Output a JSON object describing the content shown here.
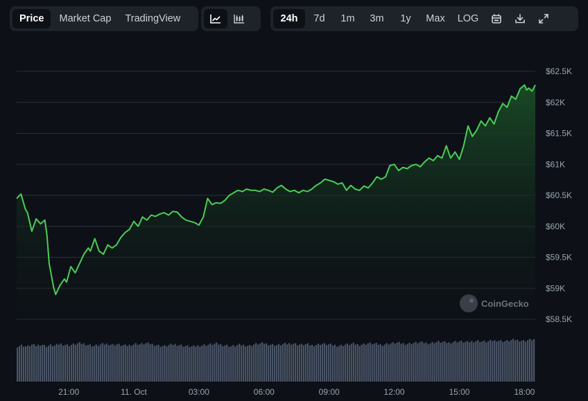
{
  "toolbar": {
    "view_tabs": [
      {
        "label": "Price",
        "active": true
      },
      {
        "label": "Market Cap",
        "active": false
      },
      {
        "label": "TradingView",
        "active": false
      }
    ],
    "chart_type_icons": [
      {
        "icon": "line-chart-icon",
        "active": true
      },
      {
        "icon": "candlestick-chart-icon",
        "active": false
      }
    ],
    "ranges": [
      {
        "label": "24h",
        "active": true
      },
      {
        "label": "7d",
        "active": false
      },
      {
        "label": "1m",
        "active": false
      },
      {
        "label": "3m",
        "active": false
      },
      {
        "label": "1y",
        "active": false
      },
      {
        "label": "Max",
        "active": false
      },
      {
        "label": "LOG",
        "active": false
      }
    ],
    "tool_icons": [
      "calendar-icon",
      "download-icon",
      "expand-icon"
    ]
  },
  "watermark": "CoinGecko",
  "colors": {
    "background": "#0d1117",
    "line": "#4ccd57",
    "area_top": "#1a4d26",
    "volume": "#4a5568",
    "grid": "#2a3038",
    "button_group": "#1e2329"
  },
  "chart_data": {
    "type": "area",
    "y_ticks": [
      {
        "value": 62500,
        "label": "$62.5K"
      },
      {
        "value": 62000,
        "label": "$62K"
      },
      {
        "value": 61500,
        "label": "$61.5K"
      },
      {
        "value": 61000,
        "label": "$61K"
      },
      {
        "value": 60500,
        "label": "$60.5K"
      },
      {
        "value": 60000,
        "label": "$60K"
      },
      {
        "value": 59500,
        "label": "$59.5K"
      },
      {
        "value": 59000,
        "label": "$59K"
      },
      {
        "value": 58500,
        "label": "$58.5K"
      }
    ],
    "ylim": [
      58500,
      62500
    ],
    "x_ticks": [
      {
        "hour": 21,
        "label": "21:00"
      },
      {
        "hour": 24,
        "label": "11. Oct"
      },
      {
        "hour": 27,
        "label": "03:00"
      },
      {
        "hour": 30,
        "label": "06:00"
      },
      {
        "hour": 33,
        "label": "09:00"
      },
      {
        "hour": 36,
        "label": "12:00"
      },
      {
        "hour": 39,
        "label": "15:00"
      },
      {
        "hour": 42,
        "label": "18:00"
      }
    ],
    "xlim_hours": [
      18.6,
      42.5
    ],
    "price": [
      [
        18.6,
        60450
      ],
      [
        18.8,
        60520
      ],
      [
        19.0,
        60280
      ],
      [
        19.1,
        60220
      ],
      [
        19.3,
        59920
      ],
      [
        19.5,
        60120
      ],
      [
        19.7,
        60040
      ],
      [
        19.9,
        60100
      ],
      [
        20.0,
        59850
      ],
      [
        20.1,
        59400
      ],
      [
        20.3,
        59020
      ],
      [
        20.4,
        58900
      ],
      [
        20.6,
        59050
      ],
      [
        20.8,
        59150
      ],
      [
        20.9,
        59100
      ],
      [
        21.1,
        59350
      ],
      [
        21.3,
        59250
      ],
      [
        21.5,
        59400
      ],
      [
        21.7,
        59550
      ],
      [
        21.9,
        59650
      ],
      [
        22.0,
        59600
      ],
      [
        22.2,
        59800
      ],
      [
        22.4,
        59600
      ],
      [
        22.6,
        59550
      ],
      [
        22.8,
        59700
      ],
      [
        23.0,
        59650
      ],
      [
        23.2,
        59700
      ],
      [
        23.4,
        59820
      ],
      [
        23.6,
        59900
      ],
      [
        23.8,
        59950
      ],
      [
        24.0,
        60080
      ],
      [
        24.2,
        60000
      ],
      [
        24.4,
        60150
      ],
      [
        24.6,
        60100
      ],
      [
        24.8,
        60180
      ],
      [
        25.0,
        60160
      ],
      [
        25.2,
        60200
      ],
      [
        25.4,
        60220
      ],
      [
        25.6,
        60180
      ],
      [
        25.8,
        60240
      ],
      [
        26.0,
        60230
      ],
      [
        26.2,
        60150
      ],
      [
        26.4,
        60100
      ],
      [
        26.6,
        60080
      ],
      [
        26.8,
        60060
      ],
      [
        27.0,
        60020
      ],
      [
        27.2,
        60150
      ],
      [
        27.4,
        60450
      ],
      [
        27.6,
        60350
      ],
      [
        27.8,
        60380
      ],
      [
        28.0,
        60370
      ],
      [
        28.2,
        60420
      ],
      [
        28.4,
        60500
      ],
      [
        28.6,
        60540
      ],
      [
        28.8,
        60580
      ],
      [
        29.0,
        60560
      ],
      [
        29.2,
        60600
      ],
      [
        29.4,
        60580
      ],
      [
        29.6,
        60580
      ],
      [
        29.8,
        60560
      ],
      [
        30.0,
        60600
      ],
      [
        30.2,
        60580
      ],
      [
        30.4,
        60550
      ],
      [
        30.6,
        60620
      ],
      [
        30.8,
        60660
      ],
      [
        31.0,
        60600
      ],
      [
        31.2,
        60560
      ],
      [
        31.4,
        60580
      ],
      [
        31.6,
        60540
      ],
      [
        31.8,
        60580
      ],
      [
        32.0,
        60560
      ],
      [
        32.2,
        60600
      ],
      [
        32.4,
        60660
      ],
      [
        32.6,
        60700
      ],
      [
        32.8,
        60760
      ],
      [
        33.0,
        60740
      ],
      [
        33.2,
        60720
      ],
      [
        33.4,
        60680
      ],
      [
        33.6,
        60700
      ],
      [
        33.8,
        60580
      ],
      [
        34.0,
        60660
      ],
      [
        34.2,
        60600
      ],
      [
        34.4,
        60580
      ],
      [
        34.6,
        60650
      ],
      [
        34.8,
        60620
      ],
      [
        35.0,
        60700
      ],
      [
        35.2,
        60800
      ],
      [
        35.4,
        60760
      ],
      [
        35.6,
        60800
      ],
      [
        35.8,
        60980
      ],
      [
        36.0,
        61000
      ],
      [
        36.2,
        60900
      ],
      [
        36.4,
        60950
      ],
      [
        36.6,
        60930
      ],
      [
        36.8,
        60980
      ],
      [
        37.0,
        61000
      ],
      [
        37.2,
        60960
      ],
      [
        37.4,
        61040
      ],
      [
        37.6,
        61100
      ],
      [
        37.8,
        61060
      ],
      [
        38.0,
        61140
      ],
      [
        38.2,
        61100
      ],
      [
        38.4,
        61300
      ],
      [
        38.6,
        61100
      ],
      [
        38.8,
        61200
      ],
      [
        39.0,
        61080
      ],
      [
        39.2,
        61300
      ],
      [
        39.4,
        61620
      ],
      [
        39.6,
        61450
      ],
      [
        39.8,
        61550
      ],
      [
        40.0,
        61700
      ],
      [
        40.2,
        61620
      ],
      [
        40.4,
        61750
      ],
      [
        40.6,
        61650
      ],
      [
        40.8,
        61850
      ],
      [
        41.0,
        61980
      ],
      [
        41.2,
        61920
      ],
      [
        41.4,
        62100
      ],
      [
        41.6,
        62050
      ],
      [
        41.8,
        62220
      ],
      [
        42.0,
        62280
      ],
      [
        42.1,
        62200
      ],
      [
        42.2,
        62230
      ],
      [
        42.35,
        62180
      ],
      [
        42.5,
        62280
      ]
    ],
    "volume_relative": [
      0.72,
      0.74,
      0.71,
      0.75,
      0.73,
      0.76,
      0.72,
      0.74,
      0.73,
      0.77,
      0.75,
      0.74,
      0.76,
      0.78,
      0.77,
      0.75,
      0.73,
      0.74,
      0.76,
      0.77,
      0.75,
      0.76,
      0.74,
      0.73,
      0.75,
      0.77,
      0.76,
      0.78,
      0.77,
      0.75,
      0.73,
      0.72,
      0.74,
      0.76,
      0.75,
      0.73,
      0.72,
      0.71,
      0.73,
      0.74,
      0.75,
      0.76,
      0.77,
      0.75,
      0.74,
      0.72,
      0.73,
      0.75,
      0.74,
      0.73,
      0.76,
      0.77,
      0.78,
      0.76,
      0.75,
      0.74,
      0.76,
      0.77,
      0.78,
      0.76,
      0.75,
      0.76,
      0.74,
      0.75,
      0.77,
      0.76,
      0.75,
      0.74,
      0.73,
      0.75,
      0.76,
      0.77,
      0.75,
      0.76,
      0.78,
      0.77,
      0.76,
      0.75,
      0.77,
      0.78,
      0.79,
      0.78,
      0.77,
      0.78,
      0.79,
      0.8,
      0.79,
      0.78,
      0.8,
      0.81,
      0.8,
      0.79,
      0.81,
      0.82,
      0.81,
      0.8,
      0.82,
      0.83,
      0.82,
      0.81,
      0.83,
      0.84,
      0.83,
      0.82,
      0.84,
      0.85,
      0.84,
      0.83,
      0.85,
      0.86
    ]
  }
}
